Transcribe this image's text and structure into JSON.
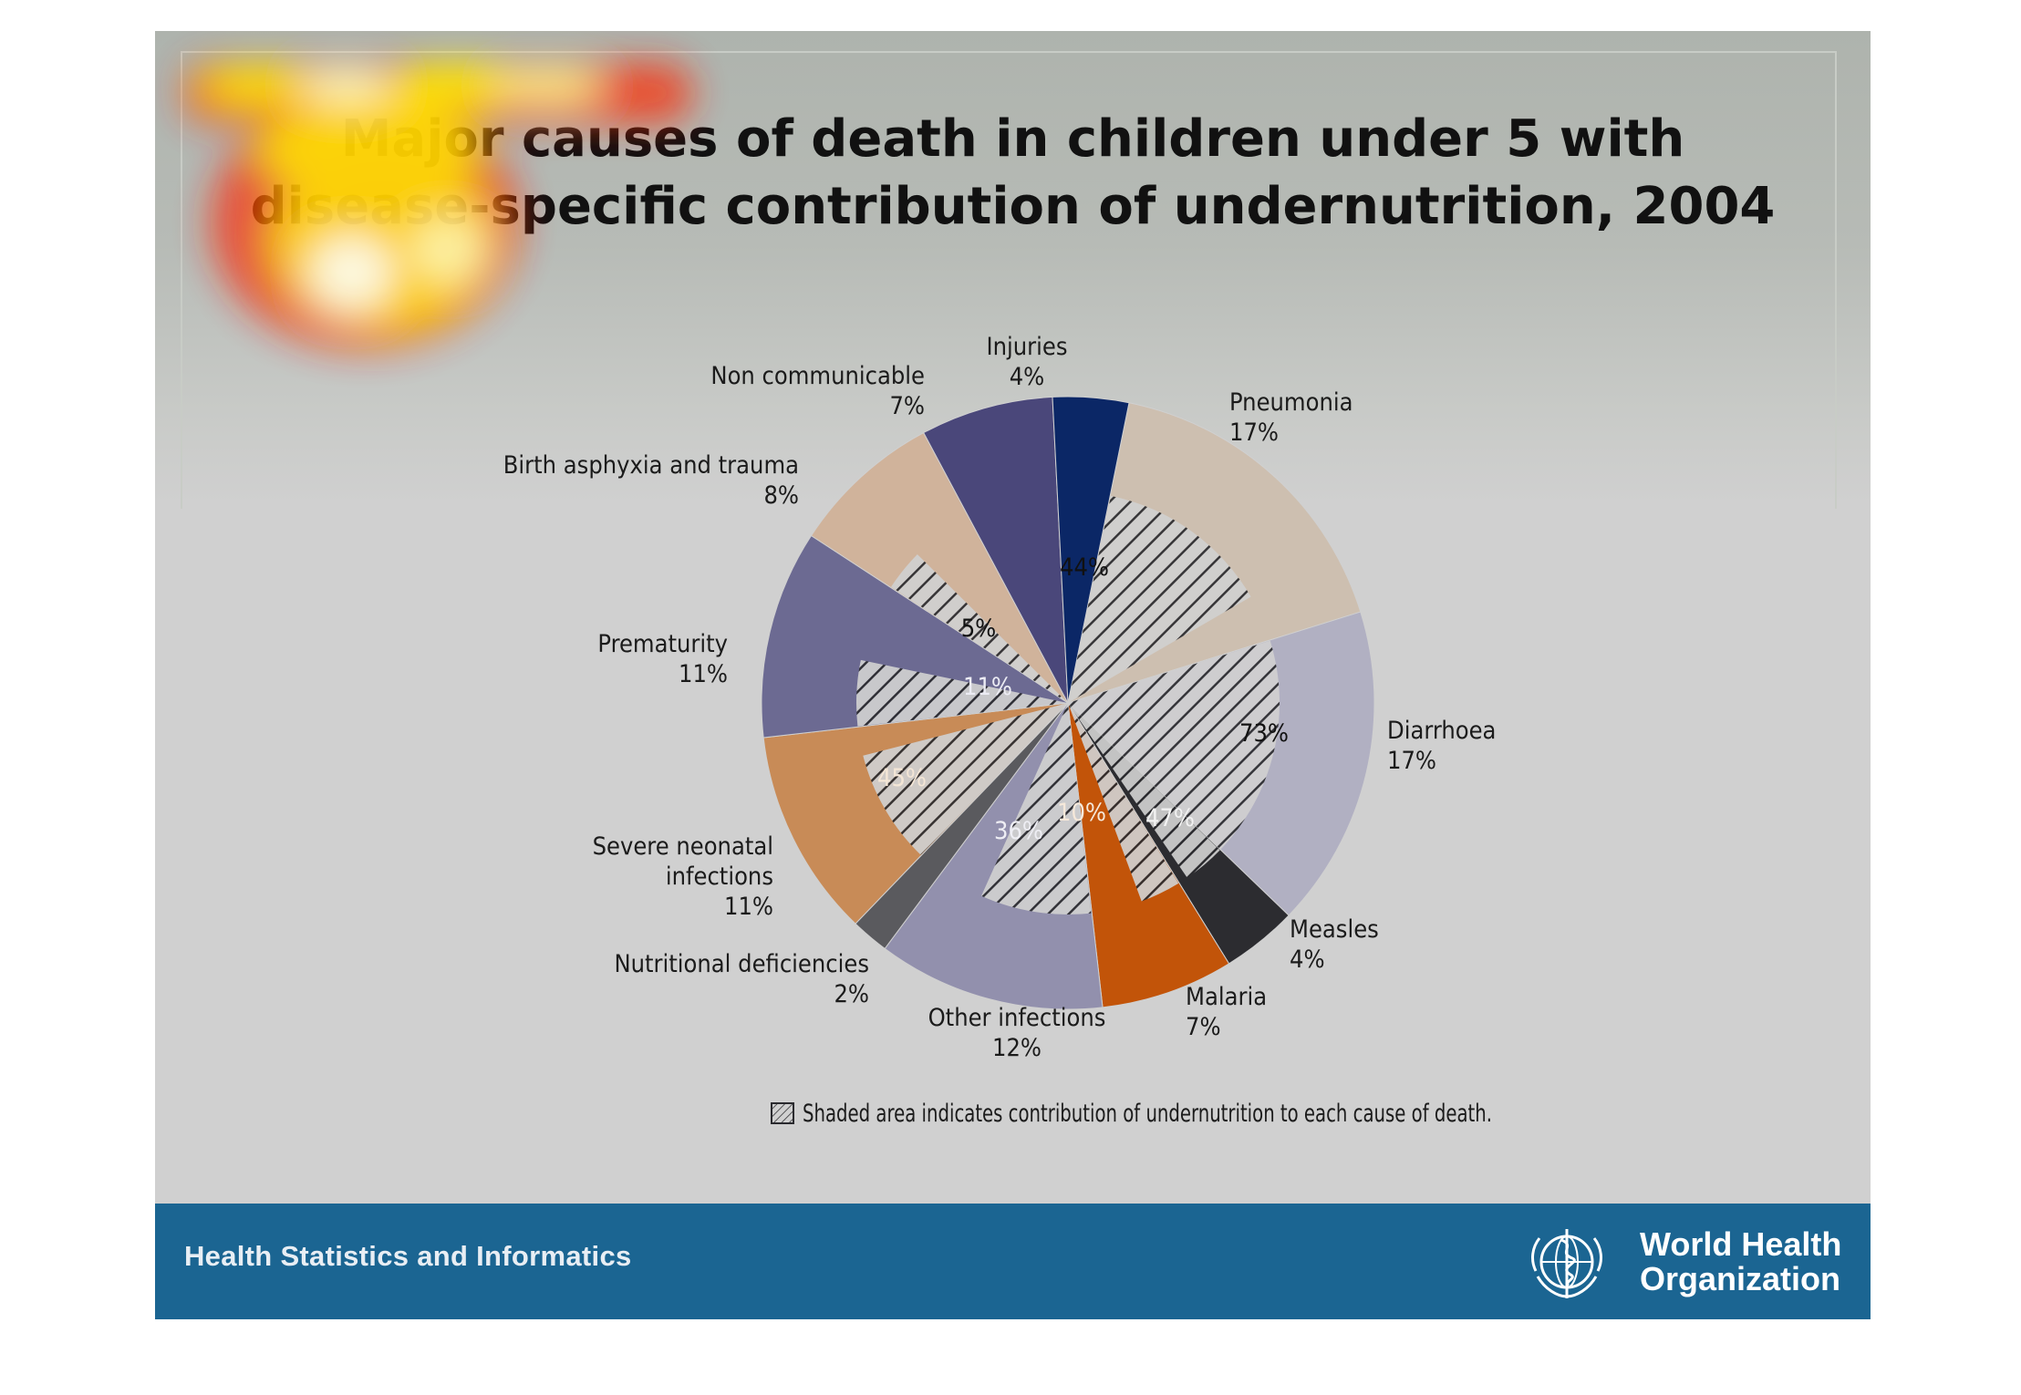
{
  "slide": {
    "title_line1": "Major causes of death in children under 5 with",
    "title_line2": "disease-specific contribution of undernutrition, 2004",
    "footer_text": "Health Statistics and Informatics",
    "org_name_line1": "World Health",
    "org_name_line2": "Organization",
    "background_color": "#d0d0d0",
    "footer_color": "#1b6592"
  },
  "chart_data": {
    "type": "pie",
    "title": "Major causes of death in children under 5 with disease-specific contribution of undernutrition, 2004",
    "slices": [
      {
        "label": "Pneumonia",
        "value": 17,
        "value_label": "17%",
        "undernutrition_share": 44,
        "undernutrition_label": "44%",
        "color": "#cdbfb0"
      },
      {
        "label": "Diarrhoea",
        "value": 17,
        "value_label": "17%",
        "undernutrition_share": 73,
        "undernutrition_label": "73%",
        "color": "#b1b0c2"
      },
      {
        "label": "Measles",
        "value": 4,
        "value_label": "4%",
        "undernutrition_share": 47,
        "undernutrition_label": "47%",
        "color": "#2c2c30"
      },
      {
        "label": "Malaria",
        "value": 7,
        "value_label": "7%",
        "undernutrition_share": 10,
        "undernutrition_label": "10%",
        "color": "#c25409"
      },
      {
        "label": "Other infections",
        "value": 12,
        "value_label": "12%",
        "undernutrition_share": 36,
        "undernutrition_label": "36%",
        "color": "#9290ad"
      },
      {
        "label": "Nutritional deficiencies",
        "value": 2,
        "value_label": "2%",
        "undernutrition_share": null,
        "undernutrition_label": "",
        "color": "#5a5a5e"
      },
      {
        "label": "Severe neonatal infections",
        "value": 11,
        "value_label": "11%",
        "undernutrition_share": 45,
        "undernutrition_label": "45%",
        "color": "#c88b57"
      },
      {
        "label": "Prematurity",
        "value": 11,
        "value_label": "11%",
        "undernutrition_share": 11,
        "undernutrition_label": "11%",
        "color": "#6c6a92"
      },
      {
        "label": "Birth asphyxia and trauma",
        "value": 8,
        "value_label": "8%",
        "undernutrition_share": 5,
        "undernutrition_label": "5%",
        "color": "#d0b39b"
      },
      {
        "label": "Non communicable",
        "value": 7,
        "value_label": "7%",
        "undernutrition_share": null,
        "undernutrition_label": "",
        "color": "#4a477a"
      },
      {
        "label": "Injuries",
        "value": 4,
        "value_label": "4%",
        "undernutrition_share": null,
        "undernutrition_label": "",
        "color": "#0b2766"
      }
    ],
    "legend": {
      "text": "Shaded area indicates contribution of undernutrition to each cause of death.",
      "placement": "bottom"
    }
  }
}
